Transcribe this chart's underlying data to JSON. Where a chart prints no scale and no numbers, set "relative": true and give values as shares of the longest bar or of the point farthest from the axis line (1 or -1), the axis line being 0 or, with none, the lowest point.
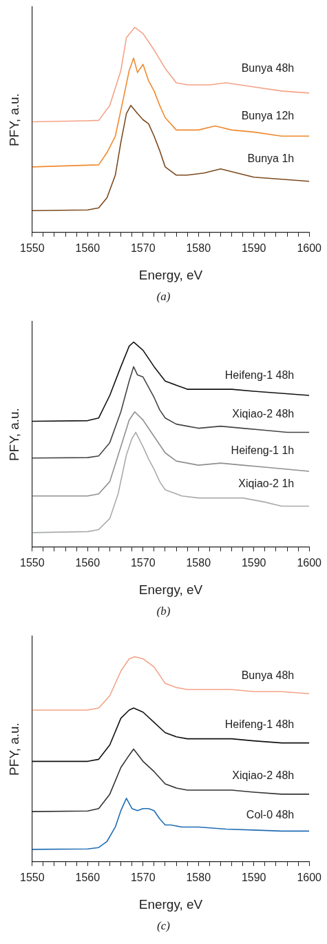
{
  "chart_data": [
    {
      "type": "line",
      "xlabel": "Energy, eV",
      "ylabel": "PFY, a.u.",
      "annotations": [
        "(a)"
      ],
      "xlim": [
        1550,
        1600
      ],
      "xticks": [
        1550,
        {
          "value": 1552,
          "label": null
        },
        {
          "value": 1554,
          "label": null
        },
        {
          "value": 1556,
          "label": null
        },
        {
          "value": 1558,
          "label": null
        },
        1560,
        {
          "value": 1562,
          "label": null
        },
        {
          "value": 1564,
          "label": null
        },
        {
          "value": 1566,
          "label": null
        },
        {
          "value": 1568,
          "label": null
        },
        1570,
        {
          "value": 1572,
          "label": null
        },
        {
          "value": 1574,
          "label": null
        },
        {
          "value": 1576,
          "label": null
        },
        {
          "value": 1578,
          "label": null
        },
        1580,
        {
          "value": 1582,
          "label": null
        },
        {
          "value": 1584,
          "label": null
        },
        {
          "value": 1586,
          "label": null
        },
        {
          "value": 1588,
          "label": null
        },
        1590,
        {
          "value": 1592,
          "label": null
        },
        {
          "value": 1594,
          "label": null
        },
        {
          "value": 1596,
          "label": null
        },
        {
          "value": 1598,
          "label": null
        },
        1600
      ],
      "relative": true,
      "tick_labels": "x",
      "grid": false,
      "legend": false,
      "marker": "none",
      "line_style": "solid",
      "series": [
        {
          "name": "Bunya 48h",
          "color": "#f4a287",
          "x": [
            1550,
            1560,
            1562,
            1564,
            1566,
            1567,
            1568.5,
            1570,
            1572,
            1574,
            1576,
            1578,
            1582,
            1585,
            1590,
            1595,
            1600
          ],
          "values": [
            0.54,
            0.545,
            0.547,
            0.62,
            0.79,
            0.95,
            1.0,
            0.97,
            0.89,
            0.8,
            0.73,
            0.72,
            0.72,
            0.73,
            0.71,
            0.69,
            0.68
          ]
        },
        {
          "name": "Bunya 12h",
          "color": "#f0892e",
          "x": [
            1550,
            1562,
            1563.5,
            1565,
            1566.5,
            1567.5,
            1568.3,
            1569,
            1570,
            1571,
            1572,
            1573,
            1574,
            1576,
            1578,
            1580,
            1583,
            1586,
            1590,
            1595,
            1600
          ],
          "values": [
            0.32,
            0.33,
            0.39,
            0.47,
            0.66,
            0.79,
            0.85,
            0.78,
            0.82,
            0.74,
            0.69,
            0.62,
            0.56,
            0.5,
            0.5,
            0.5,
            0.52,
            0.5,
            0.49,
            0.47,
            0.47
          ]
        },
        {
          "name": "Bunya 1h",
          "color": "#7b4a1e",
          "x": [
            1550,
            1560,
            1562,
            1563.5,
            1565,
            1566,
            1567,
            1567.8,
            1569,
            1570,
            1571,
            1572,
            1573,
            1574,
            1576,
            1578,
            1581,
            1584,
            1587,
            1590,
            1595,
            1600
          ],
          "values": [
            0.107,
            0.11,
            0.12,
            0.17,
            0.28,
            0.44,
            0.58,
            0.62,
            0.58,
            0.55,
            0.53,
            0.47,
            0.4,
            0.32,
            0.28,
            0.28,
            0.29,
            0.31,
            0.29,
            0.27,
            0.26,
            0.25
          ]
        }
      ]
    },
    {
      "type": "line",
      "xlabel": "Energy, eV",
      "ylabel": "PFY, a.u.",
      "annotations": [
        "(b)"
      ],
      "xlim": [
        1550,
        1600
      ],
      "xticks": [
        1550,
        {
          "value": 1552,
          "label": null
        },
        {
          "value": 1554,
          "label": null
        },
        {
          "value": 1556,
          "label": null
        },
        {
          "value": 1558,
          "label": null
        },
        1560,
        {
          "value": 1562,
          "label": null
        },
        {
          "value": 1564,
          "label": null
        },
        {
          "value": 1566,
          "label": null
        },
        {
          "value": 1568,
          "label": null
        },
        1570,
        {
          "value": 1572,
          "label": null
        },
        {
          "value": 1574,
          "label": null
        },
        {
          "value": 1576,
          "label": null
        },
        {
          "value": 1578,
          "label": null
        },
        1580,
        {
          "value": 1582,
          "label": null
        },
        {
          "value": 1584,
          "label": null
        },
        {
          "value": 1586,
          "label": null
        },
        {
          "value": 1588,
          "label": null
        },
        1590,
        {
          "value": 1592,
          "label": null
        },
        {
          "value": 1594,
          "label": null
        },
        {
          "value": 1596,
          "label": null
        },
        {
          "value": 1598,
          "label": null
        },
        1600
      ],
      "relative": true,
      "tick_labels": "x",
      "grid": false,
      "legend": false,
      "marker": "none",
      "line_style": "solid",
      "series": [
        {
          "name": "Heifeng-1 48h",
          "color": "#111111",
          "x": [
            1550,
            1560,
            1562,
            1564,
            1566,
            1567.5,
            1568.3,
            1570,
            1572,
            1574,
            1576,
            1578,
            1580,
            1583,
            1586,
            1590,
            1595,
            1600
          ],
          "values": [
            0.614,
            0.617,
            0.63,
            0.74,
            0.88,
            0.98,
            1.0,
            0.96,
            0.88,
            0.81,
            0.79,
            0.77,
            0.77,
            0.77,
            0.77,
            0.76,
            0.75,
            0.74
          ]
        },
        {
          "name": "Xiqiao-2 48h",
          "color": "#444444",
          "x": [
            1550,
            1560,
            1562,
            1564,
            1566,
            1567.5,
            1568.3,
            1569,
            1570,
            1571,
            1572,
            1573,
            1574,
            1576,
            1578,
            1580,
            1584,
            1588,
            1592,
            1596,
            1600
          ],
          "values": [
            0.435,
            0.437,
            0.445,
            0.51,
            0.66,
            0.81,
            0.88,
            0.84,
            0.83,
            0.78,
            0.73,
            0.67,
            0.63,
            0.6,
            0.59,
            0.58,
            0.59,
            0.58,
            0.57,
            0.56,
            0.56
          ]
        },
        {
          "name": "Heifeng-1 1h",
          "color": "#8f8f8f",
          "x": [
            1550,
            1560,
            1562,
            1564,
            1566,
            1567.5,
            1568.5,
            1570,
            1572,
            1574,
            1576,
            1578,
            1580,
            1584,
            1588,
            1592,
            1596,
            1600
          ],
          "values": [
            0.25,
            0.25,
            0.26,
            0.32,
            0.49,
            0.62,
            0.66,
            0.62,
            0.54,
            0.46,
            0.42,
            0.41,
            0.4,
            0.41,
            0.4,
            0.39,
            0.38,
            0.37
          ]
        },
        {
          "name": "Xiqiao-2 1h",
          "color": "#a8abad",
          "x": [
            1550,
            1560,
            1562,
            1564,
            1565.5,
            1567,
            1568,
            1568.7,
            1570,
            1571,
            1572,
            1573,
            1574,
            1575,
            1577,
            1580,
            1584,
            1588,
            1592,
            1595,
            1600
          ],
          "values": [
            0.071,
            0.076,
            0.086,
            0.14,
            0.26,
            0.45,
            0.53,
            0.56,
            0.49,
            0.43,
            0.38,
            0.32,
            0.28,
            0.27,
            0.25,
            0.24,
            0.24,
            0.24,
            0.22,
            0.2,
            0.2
          ]
        }
      ]
    },
    {
      "type": "line",
      "xlabel": "Energy, eV",
      "ylabel": "PFY, a.u.",
      "annotations": [
        "(c)"
      ],
      "xlim": [
        1550,
        1600
      ],
      "xticks": [
        1550,
        {
          "value": 1552,
          "label": null
        },
        {
          "value": 1554,
          "label": null
        },
        {
          "value": 1556,
          "label": null
        },
        {
          "value": 1558,
          "label": null
        },
        1560,
        {
          "value": 1562,
          "label": null
        },
        {
          "value": 1564,
          "label": null
        },
        {
          "value": 1566,
          "label": null
        },
        {
          "value": 1568,
          "label": null
        },
        1570,
        {
          "value": 1572,
          "label": null
        },
        {
          "value": 1574,
          "label": null
        },
        {
          "value": 1576,
          "label": null
        },
        {
          "value": 1578,
          "label": null
        },
        1580,
        {
          "value": 1582,
          "label": null
        },
        {
          "value": 1584,
          "label": null
        },
        {
          "value": 1586,
          "label": null
        },
        {
          "value": 1588,
          "label": null
        },
        1590,
        {
          "value": 1592,
          "label": null
        },
        {
          "value": 1594,
          "label": null
        },
        {
          "value": 1596,
          "label": null
        },
        {
          "value": 1598,
          "label": null
        },
        1600
      ],
      "relative": true,
      "tick_labels": "x",
      "grid": false,
      "legend": false,
      "marker": "none",
      "line_style": "solid",
      "series": [
        {
          "name": "Bunya 48h",
          "color": "#f4a287",
          "x": [
            1550,
            1560,
            1562,
            1564,
            1566,
            1567.5,
            1568.5,
            1570,
            1572,
            1574,
            1576,
            1578,
            1582,
            1586,
            1590,
            1595,
            1600
          ],
          "values": [
            0.74,
            0.74,
            0.75,
            0.81,
            0.93,
            0.99,
            1.0,
            0.99,
            0.95,
            0.87,
            0.85,
            0.84,
            0.84,
            0.84,
            0.83,
            0.83,
            0.82
          ]
        },
        {
          "name": "Heifeng-1 48h",
          "color": "#111111",
          "x": [
            1550,
            1560,
            1562,
            1564,
            1566,
            1567.5,
            1568.3,
            1570,
            1572,
            1574,
            1576,
            1578,
            1582,
            1586,
            1590,
            1595,
            1600
          ],
          "values": [
            0.49,
            0.49,
            0.5,
            0.57,
            0.7,
            0.74,
            0.75,
            0.73,
            0.68,
            0.63,
            0.61,
            0.6,
            0.6,
            0.6,
            0.59,
            0.58,
            0.58
          ]
        },
        {
          "name": "Xiqiao-2 48h",
          "color": "#333333",
          "x": [
            1550,
            1560,
            1562,
            1564,
            1566,
            1567.5,
            1568.3,
            1570,
            1572,
            1574,
            1576,
            1578,
            1582,
            1586,
            1590,
            1595,
            1600
          ],
          "values": [
            0.245,
            0.248,
            0.26,
            0.33,
            0.46,
            0.52,
            0.55,
            0.49,
            0.44,
            0.38,
            0.36,
            0.35,
            0.35,
            0.35,
            0.34,
            0.33,
            0.33
          ]
        },
        {
          "name": "Col-0 48h",
          "color": "#1f6db3",
          "x": [
            1550,
            1560,
            1562,
            1563.5,
            1565,
            1566,
            1567,
            1568,
            1569,
            1570,
            1571,
            1572,
            1573,
            1574,
            1575,
            1577,
            1580,
            1585,
            1590,
            1595,
            1600
          ],
          "values": [
            0.061,
            0.063,
            0.07,
            0.1,
            0.17,
            0.25,
            0.31,
            0.26,
            0.25,
            0.26,
            0.26,
            0.25,
            0.21,
            0.18,
            0.18,
            0.17,
            0.17,
            0.16,
            0.155,
            0.15,
            0.15
          ]
        }
      ]
    }
  ]
}
